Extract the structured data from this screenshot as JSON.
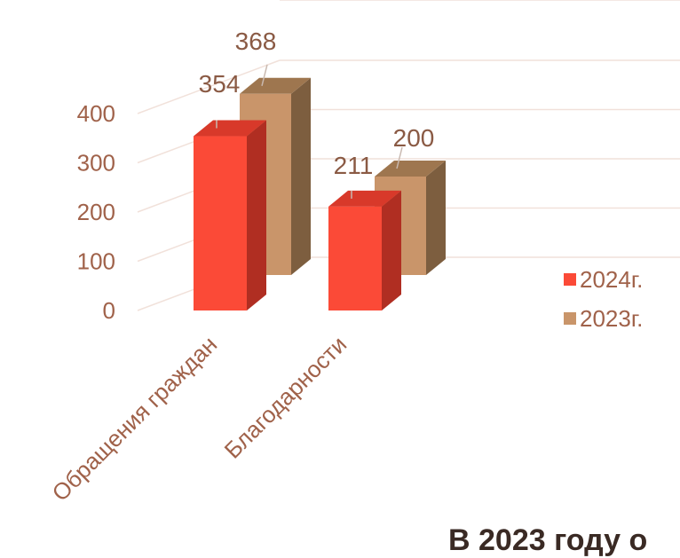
{
  "chart_data": {
    "type": "bar",
    "categories": [
      "Обращения граждан",
      "Благодарности"
    ],
    "series": [
      {
        "name": "2024г.",
        "values": [
          354,
          211
        ],
        "color": "#fb4a37",
        "side_color": "#b02e22",
        "top_color": "#d8392a"
      },
      {
        "name": "2023г.",
        "values": [
          368,
          200
        ],
        "color": "#c9956a",
        "side_color": "#7d5e3f",
        "top_color": "#9e764f"
      }
    ],
    "yticks": [
      "0",
      "100",
      "200",
      "300",
      "400"
    ],
    "ylim": [
      0,
      400
    ],
    "grid": true,
    "legend": "right"
  },
  "caption": "В 2023 году о"
}
